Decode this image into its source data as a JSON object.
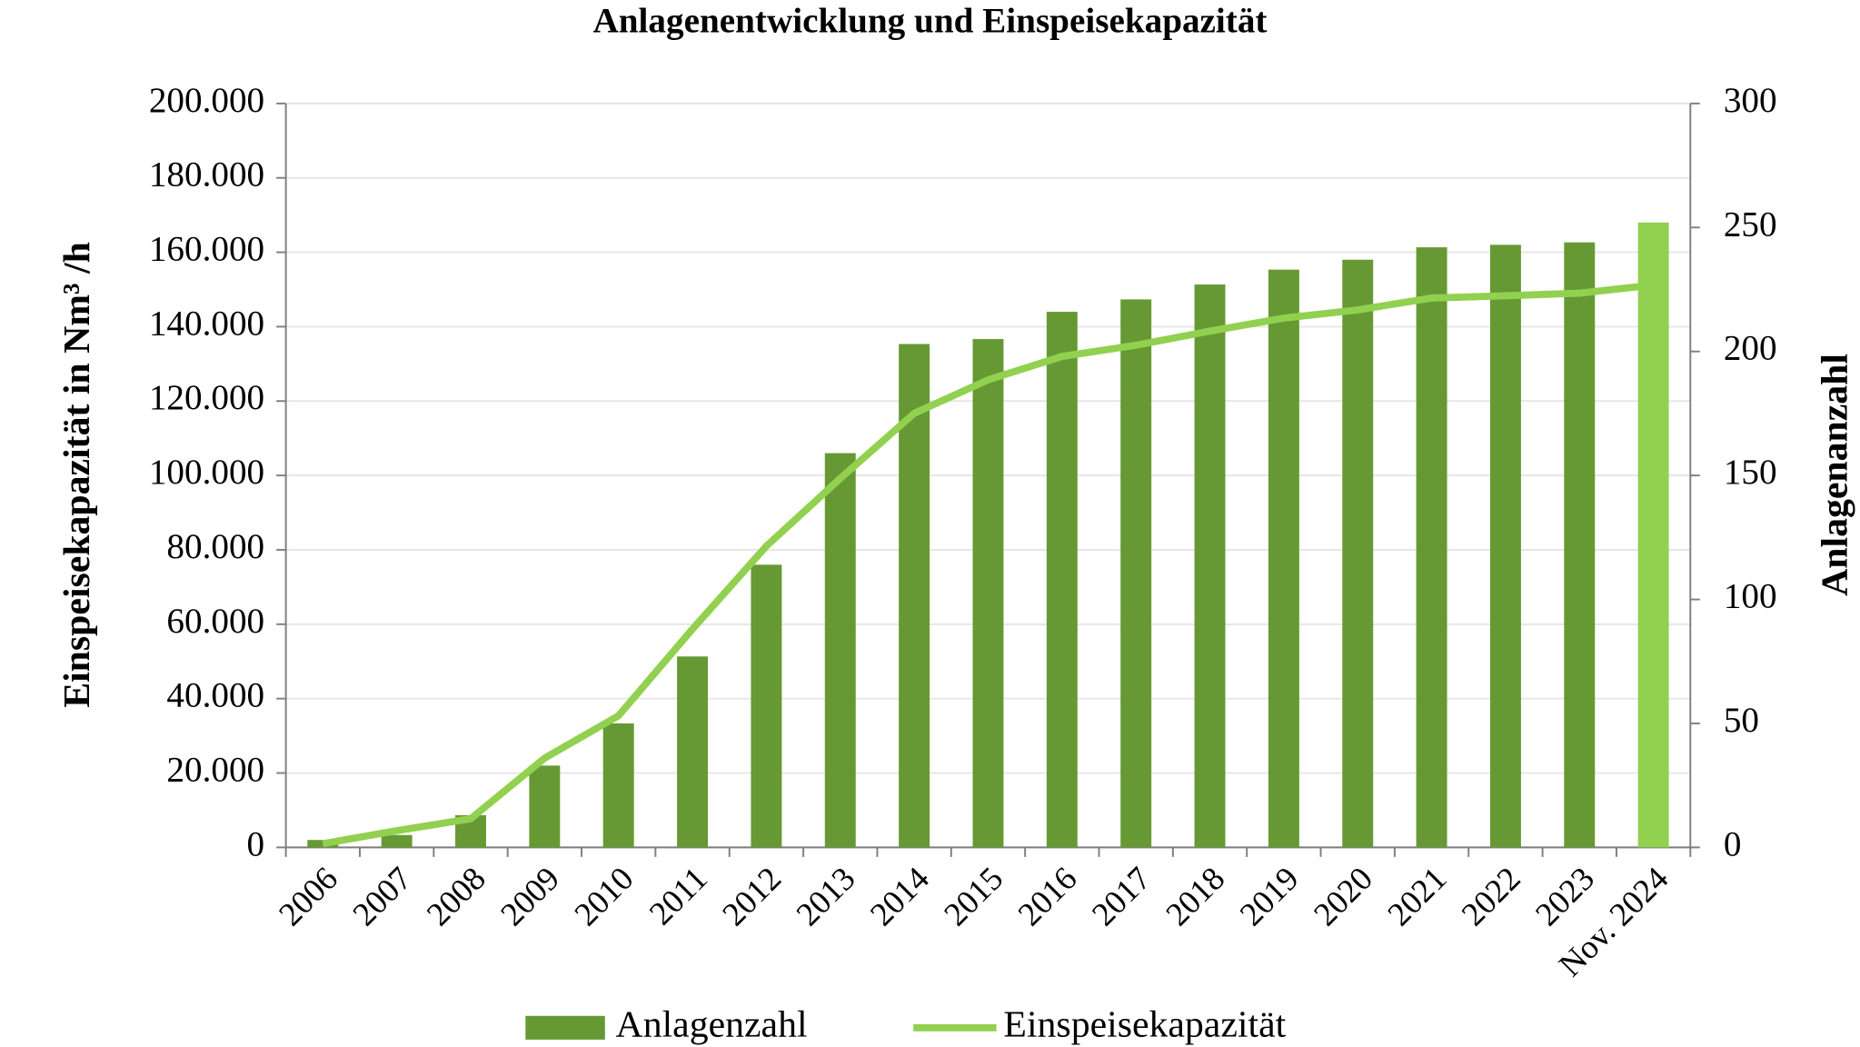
{
  "chart_data": {
    "type": "bar",
    "title": "Anlagenentwicklung und Einspeisekapazität",
    "y_label": "Einspeisekapazität in Nm³ /h",
    "y2_label": "Anlagenanzahl",
    "categories": [
      "2006",
      "2007",
      "2008",
      "2009",
      "2010",
      "2011",
      "2012",
      "2013",
      "2014",
      "2015",
      "2016",
      "2017",
      "2018",
      "2019",
      "2020",
      "2021",
      "2022",
      "2023",
      "Nov. 2024"
    ],
    "series": [
      {
        "name": "Anlagenzahl",
        "type": "bar",
        "axis": "y2",
        "color": "#669933",
        "colors": [
          "#669933",
          "#669933",
          "#669933",
          "#669933",
          "#669933",
          "#669933",
          "#669933",
          "#669933",
          "#669933",
          "#669933",
          "#669933",
          "#669933",
          "#669933",
          "#669933",
          "#669933",
          "#669933",
          "#669933",
          "#669933",
          "#92d050"
        ],
        "values": [
          3,
          5,
          13,
          33,
          50,
          77,
          114,
          159,
          203,
          205,
          216,
          221,
          227,
          233,
          237,
          242,
          243,
          244,
          252
        ]
      },
      {
        "name": "Einspeisekapazität",
        "type": "line",
        "color": "#92d050",
        "values": [
          1000,
          4500,
          7700,
          24000,
          35400,
          58700,
          81000,
          99200,
          116700,
          125700,
          132000,
          135000,
          138800,
          142300,
          144500,
          147700,
          148300,
          149000,
          151200
        ]
      }
    ],
    "ylim": [
      0,
      200000
    ],
    "yticks": [
      0,
      {
        "value": 20000,
        "label": "20.000"
      },
      {
        "value": 40000,
        "label": "40.000"
      },
      {
        "value": 60000,
        "label": "60.000"
      },
      {
        "value": 80000,
        "label": "80.000"
      },
      {
        "value": 100000,
        "label": "100.000"
      },
      {
        "value": 120000,
        "label": "120.000"
      },
      {
        "value": 140000,
        "label": "140.000"
      },
      {
        "value": 160000,
        "label": "160.000"
      },
      {
        "value": 180000,
        "label": "180.000"
      },
      {
        "value": 200000,
        "label": "200.000"
      }
    ],
    "y2lim": [
      0,
      300
    ],
    "y2ticks": [
      0,
      50,
      100,
      150,
      200,
      250,
      300
    ],
    "grid": true,
    "legend": "bottom"
  }
}
